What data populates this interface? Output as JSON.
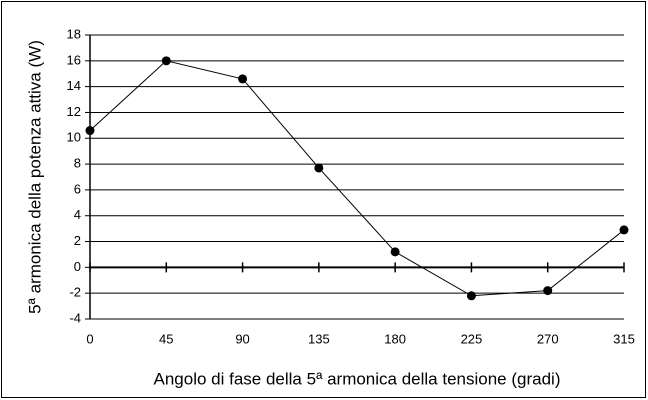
{
  "chart_data": {
    "type": "line",
    "x_label": "Angolo di fase della 5ª armonica della tensione (gradi)",
    "y_label": "5ª armonica della potenza attiva (W)",
    "x": [
      0,
      45,
      90,
      135,
      180,
      225,
      270,
      315
    ],
    "series": [
      {
        "name": "5ª armonica",
        "color": "#000000",
        "values": [
          10.6,
          16.0,
          14.6,
          7.7,
          1.2,
          -2.2,
          -1.8,
          2.9
        ]
      }
    ],
    "xlim": [
      0,
      315
    ],
    "xticks": [
      0,
      45,
      90,
      135,
      180,
      225,
      270,
      315
    ],
    "ylim": [
      -4,
      18
    ],
    "yticks": [
      -4,
      -2,
      0,
      2,
      4,
      6,
      8,
      10,
      12,
      14,
      16,
      18
    ],
    "grid": true
  }
}
